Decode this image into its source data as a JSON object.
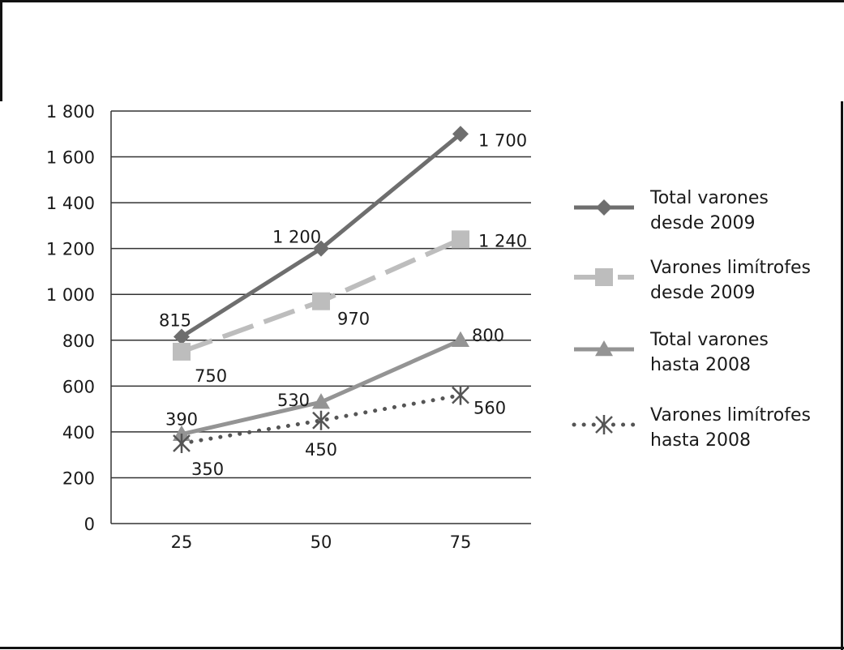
{
  "chart_data": {
    "type": "line",
    "x": [
      25,
      50,
      75
    ],
    "ylim": [
      0,
      1800
    ],
    "yticks": [
      0,
      200,
      400,
      600,
      800,
      1000,
      1200,
      1400,
      1600,
      1800
    ],
    "ytick_labels": [
      "0",
      "200",
      "400",
      "600",
      "800",
      "1 000",
      "1 200",
      "1 400",
      "1 600",
      "1 800"
    ],
    "xtick_labels": [
      "25",
      "50",
      "75"
    ],
    "grid": true,
    "legend_position": "right",
    "series": [
      {
        "name": "Total varones desde 2009",
        "legend_lines": [
          "Total varones",
          "desde 2009"
        ],
        "values": [
          815,
          1200,
          1700
        ],
        "labels": [
          "815",
          "1 200",
          "1 700"
        ],
        "color": "#6e6e6e",
        "line_style": "solid",
        "marker": "diamond"
      },
      {
        "name": "Varones limítrofes desde 2009",
        "legend_lines": [
          "Varones limítrofes",
          "desde 2009"
        ],
        "values": [
          750,
          970,
          1240
        ],
        "labels": [
          "750",
          "970",
          "1 240"
        ],
        "color": "#bdbdbd",
        "line_style": "dashed",
        "marker": "square"
      },
      {
        "name": "Total varones hasta 2008",
        "legend_lines": [
          "Total varones",
          "hasta 2008"
        ],
        "values": [
          390,
          530,
          800
        ],
        "labels": [
          "390",
          "530",
          "800"
        ],
        "color": "#949494",
        "line_style": "solid",
        "marker": "triangle"
      },
      {
        "name": "Varones limítrofes hasta 2008",
        "legend_lines": [
          "Varones limítrofes",
          "hasta 2008"
        ],
        "values": [
          350,
          450,
          560
        ],
        "labels": [
          "350",
          "450",
          "560"
        ],
        "color": "#555555",
        "line_style": "dotted",
        "marker": "star"
      }
    ]
  }
}
